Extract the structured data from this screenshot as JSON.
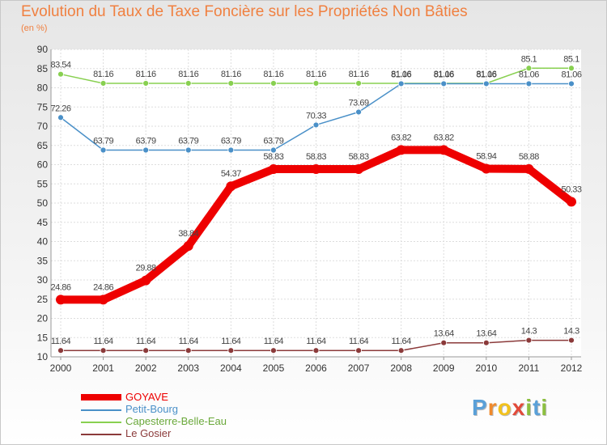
{
  "title": "Evolution du Taux de Taxe Foncière sur les Propriétés Non Bâties",
  "unit_label": "(en %)",
  "logo": {
    "letters": [
      "P",
      "r",
      "o",
      "x",
      "i",
      "t",
      "i"
    ],
    "colors": [
      "#5aa0d8",
      "#f08a2c",
      "#f2c21d",
      "#e24a3a",
      "#8cbf3f",
      "#5aa0d8",
      "#8cbf3f"
    ]
  },
  "chart_data": {
    "type": "line",
    "title": "Evolution du Taux de Taxe Foncière sur les Propriétés Non Bâties",
    "ylabel": "(en %)",
    "xlabel": "",
    "ylim": [
      10,
      90
    ],
    "yticks": [
      10,
      15,
      20,
      25,
      30,
      35,
      40,
      45,
      50,
      55,
      60,
      65,
      70,
      75,
      80,
      85,
      90
    ],
    "x": [
      "2000",
      "2001",
      "2002",
      "2003",
      "2004",
      "2005",
      "2006",
      "2007",
      "2008",
      "2009",
      "2010",
      "2011",
      "2012"
    ],
    "grid": true,
    "legend_position": "bottom-left",
    "series": [
      {
        "key": "goyave",
        "name": "GOYAVE",
        "color": "#ee0000",
        "values": [
          24.86,
          24.86,
          29.88,
          38.84,
          54.37,
          58.83,
          58.83,
          58.83,
          63.82,
          63.82,
          58.94,
          58.88,
          50.33
        ],
        "labels": [
          "24.86",
          "24.86",
          "29.88",
          "38.84",
          "54.37",
          "58.83",
          "58.83",
          "58.83",
          "63.82",
          "63.82",
          "58.94",
          "58.88",
          "50.33"
        ]
      },
      {
        "key": "petit_bourg",
        "name": "Petit-Bourg",
        "color": "#4a90c8",
        "values": [
          72.26,
          63.79,
          63.79,
          63.79,
          63.79,
          63.79,
          70.33,
          73.69,
          81.06,
          81.06,
          81.06,
          81.06,
          81.06
        ],
        "labels": [
          "72.26",
          "63.79",
          "63.79",
          "63.79",
          "63.79",
          "63.79",
          "70.33",
          "73.69",
          "81.06",
          "81.06",
          "81.06",
          "81.06",
          "81.06"
        ]
      },
      {
        "key": "capesterre",
        "name": "Capesterre-Belle-Eau",
        "color": "#88d050",
        "values": [
          83.54,
          81.16,
          81.16,
          81.16,
          81.16,
          81.16,
          81.16,
          81.16,
          81.16,
          81.16,
          81.16,
          85.1,
          85.1
        ],
        "labels": [
          "83.54",
          "81.16",
          "81.16",
          "81.16",
          "81.16",
          "81.16",
          "81.16",
          "81.16",
          "81.16",
          "81.16",
          "81.16",
          "85.1",
          "85.1"
        ]
      },
      {
        "key": "le_gosier",
        "name": "Le Gosier",
        "color": "#8b3a3a",
        "values": [
          11.64,
          11.64,
          11.64,
          11.64,
          11.64,
          11.64,
          11.64,
          11.64,
          11.64,
          13.64,
          13.64,
          14.3,
          14.3
        ],
        "labels": [
          "11.64",
          "11.64",
          "11.64",
          "11.64",
          "11.64",
          "11.64",
          "11.64",
          "11.64",
          "11.64",
          "13.64",
          "13.64",
          "14.3",
          "14.3"
        ]
      }
    ]
  }
}
